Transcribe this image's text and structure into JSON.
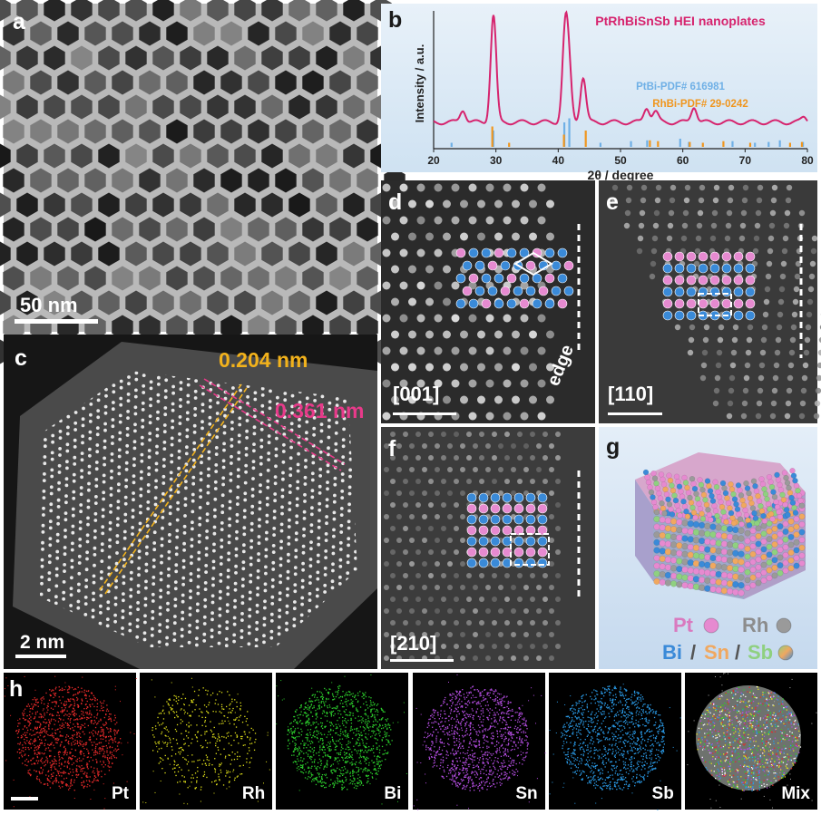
{
  "figure": {
    "panels": {
      "a": {
        "label": "a",
        "scale_bar": "50 nm"
      },
      "b": {
        "label": "b"
      },
      "c": {
        "label": "c",
        "spacing_1": "0.204 nm",
        "spacing_2": "0.361 nm",
        "scale_bar": "2 nm"
      },
      "d": {
        "label": "d",
        "zone_axis": "[001]",
        "edge_label": "edge"
      },
      "e": {
        "label": "e",
        "zone_axis": "[110]"
      },
      "f": {
        "label": "f",
        "zone_axis": "[210]"
      },
      "g": {
        "label": "g",
        "legend": {
          "pt": "Pt",
          "rh": "Rh",
          "bi": "Bi",
          "sn": "Sn",
          "sb": "Sb",
          "sep": "/"
        }
      },
      "h": {
        "label": "h",
        "maps": [
          "Pt",
          "Rh",
          "Bi",
          "Sn",
          "Sb",
          "Mix"
        ]
      }
    },
    "colors": {
      "pt": "#e68ad0",
      "rh": "#9a9a9a",
      "bi": "#3a8ad8",
      "sn": "#f0a860",
      "sb": "#8fd080"
    }
  },
  "chart_data": {
    "type": "line",
    "title": "PtRhBiSnSb HEI nanoplates",
    "xlabel": "2θ / degree",
    "ylabel": "Intensity / a.u.",
    "xlim": [
      20,
      80
    ],
    "xticks": [
      "20",
      "30",
      "40",
      "50",
      "60",
      "70",
      "80"
    ],
    "grid": false,
    "legend_position": "top-right",
    "series": [
      {
        "name": "PtRhBiSnSb HEI nanoplates",
        "color": "#d6246e",
        "peaks": [
          [
            24.7,
            0.12
          ],
          [
            29.6,
            1.0
          ],
          [
            41.1,
            0.78
          ],
          [
            41.7,
            0.45
          ],
          [
            44.0,
            0.42
          ],
          [
            54.2,
            0.14
          ],
          [
            55.6,
            0.1
          ],
          [
            61.8,
            0.15
          ],
          [
            79.5,
            0.05
          ]
        ],
        "baseline": 0.01
      }
    ],
    "references": [
      {
        "name": "PtBi-PDF# 616981",
        "color": "#6fb0e6",
        "lines": [
          [
            23.1,
            0.05
          ],
          [
            29.8,
            0.2
          ],
          [
            41.2,
            0.3
          ],
          [
            42.0,
            0.35
          ],
          [
            47.0,
            0.05
          ],
          [
            51.9,
            0.07
          ],
          [
            54.5,
            0.08
          ],
          [
            59.8,
            0.1
          ],
          [
            61.2,
            0.06
          ],
          [
            68.2,
            0.07
          ],
          [
            71.8,
            0.05
          ],
          [
            74.0,
            0.06
          ],
          [
            75.8,
            0.08
          ],
          [
            79.5,
            0.06
          ]
        ]
      },
      {
        "name": "RhBi-PDF# 29-0242",
        "color": "#f0961e",
        "lines": [
          [
            29.2,
            0.25
          ],
          [
            31.9,
            0.05
          ],
          [
            40.7,
            0.15
          ],
          [
            44.2,
            0.2
          ],
          [
            54.5,
            0.08
          ],
          [
            55.8,
            0.07
          ],
          [
            60.9,
            0.06
          ],
          [
            63.0,
            0.05
          ],
          [
            66.3,
            0.07
          ],
          [
            70.6,
            0.05
          ],
          [
            77.0,
            0.05
          ],
          [
            78.9,
            0.06
          ]
        ]
      }
    ]
  }
}
